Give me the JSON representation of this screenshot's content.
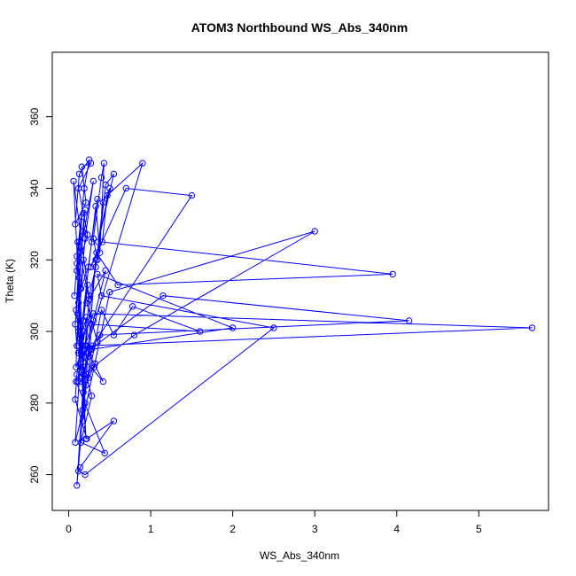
{
  "chart_data": {
    "type": "line",
    "title": "ATOM3 Northbound WS_Abs_340nm",
    "xlabel": "WS_Abs_340nm",
    "ylabel": "Theta (K)",
    "xlim": [
      -0.2,
      5.85
    ],
    "ylim": [
      250,
      378
    ],
    "x_ticks": [
      0,
      1,
      2,
      3,
      4,
      5
    ],
    "y_ticks": [
      260,
      280,
      300,
      320,
      340,
      360
    ],
    "x_tick_labels": [
      "0",
      "1",
      "2",
      "3",
      "4",
      "5"
    ],
    "y_tick_labels": [
      "260",
      "280",
      "300",
      "320",
      "340",
      "360"
    ],
    "series_color": "#0000ff",
    "marker": "open-circle",
    "grid": false,
    "series": [
      {
        "x": [
          0.07,
          0.1,
          0.13,
          0.16,
          0.09,
          0.12,
          0.15,
          0.11,
          0.14,
          0.18,
          0.1,
          0.08,
          0.13,
          0.2,
          0.17,
          0.12,
          0.09,
          0.15,
          0.11,
          0.22,
          0.14,
          0.1,
          0.19,
          0.25,
          0.13,
          0.08,
          0.21,
          0.16,
          0.27,
          0.12,
          0.18,
          0.23,
          0.1,
          0.3,
          0.2,
          0.15,
          0.24,
          0.35,
          0.28,
          0.12,
          0.14,
          0.33,
          0.38,
          0.43,
          0.4,
          0.3,
          0.35,
          0.45,
          0.55,
          0.36,
          0.5,
          0.42,
          0.33,
          0.25,
          0.19,
          0.9,
          0.47,
          0.41,
          3.95,
          0.6,
          0.34,
          0.27,
          0.7,
          1.5,
          0.29,
          0.18,
          0.8,
          3.0,
          0.5,
          0.31,
          0.15,
          0.26,
          1.15,
          4.15,
          0.38,
          0.35,
          0.22,
          0.45,
          0.3,
          0.2,
          0.42,
          0.12,
          0.25,
          0.28,
          1.6,
          0.78,
          0.55,
          0.4,
          0.24,
          0.21,
          0.32,
          0.17,
          0.18,
          0.1,
          0.08,
          0.22,
          0.55,
          0.14,
          0.12,
          0.2,
          2.5,
          0.4,
          0.35,
          2.0,
          0.28,
          0.17,
          0.22,
          5.65,
          0.3,
          0.12,
          0.23,
          0.18,
          0.09,
          0.44,
          0.15,
          0.28,
          0.19,
          0.1,
          0.33,
          0.16,
          0.21,
          0.06,
          0.25,
          0.11,
          0.2,
          0.08,
          0.14,
          0.18
        ],
        "y": [
          310,
          319,
          325,
          332,
          306,
          300,
          290,
          305,
          312,
          320,
          296,
          302,
          315,
          334,
          328,
          308,
          290,
          294,
          286,
          304,
          298,
          321,
          340,
          348,
          344,
          330,
          336,
          346,
          347,
          340,
          333,
          327,
          317,
          342,
          326,
          312,
          318,
          337,
          325,
          294,
          298,
          335,
          322,
          347,
          343,
          326,
          320,
          341,
          344,
          325,
          340,
          336,
          318,
          310,
          293,
          347,
          338,
          325,
          316,
          313,
          322,
          318,
          340,
          338,
          296,
          288,
          299,
          328,
          311,
          290,
          286,
          295,
          310,
          303,
          299,
          297,
          308,
          317,
          303,
          296,
          286,
          294,
          293,
          302,
          300,
          307,
          299,
          306,
          287,
          285,
          291,
          275,
          300,
          288,
          281,
          270,
          275,
          262,
          261,
          260,
          301,
          310,
          316,
          301,
          295,
          278,
          296,
          301,
          305,
          296,
          313,
          303,
          286,
          266,
          269,
          282,
          290,
          257,
          320,
          287,
          270,
          342,
          309,
          325,
          280,
          269,
          291,
          283
        ]
      }
    ]
  }
}
